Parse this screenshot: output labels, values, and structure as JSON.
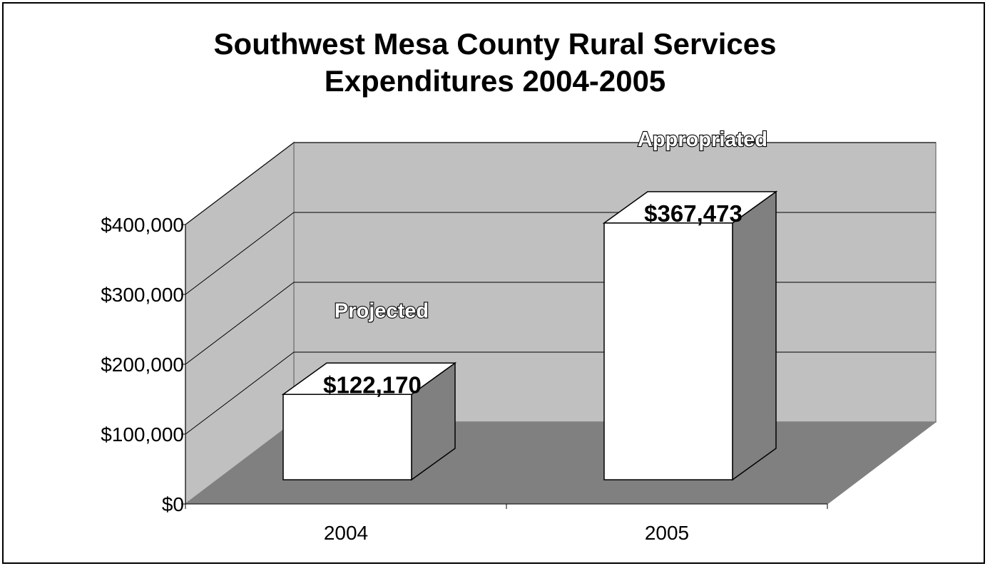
{
  "chart_data": {
    "type": "bar",
    "title": "Southwest Mesa County Rural Services",
    "subtitle": "Expenditures 2004-2005",
    "categories": [
      "2004",
      "2005"
    ],
    "values": [
      122170,
      367473
    ],
    "value_labels": [
      "$122,170",
      "$367,473"
    ],
    "annotations": [
      "Projected",
      "Appropriated"
    ],
    "ylim": [
      0,
      400000
    ],
    "yticks": [
      "$0",
      "$100,000",
      "$200,000",
      "$300,000",
      "$400,000"
    ],
    "ytick_values": [
      0,
      100000,
      200000,
      300000,
      400000
    ],
    "grid": true,
    "legend": "none",
    "style": "3d-column",
    "colors": {
      "bar_front": "#ffffff",
      "bar_side": "#808080",
      "wall": "#c0c0c0",
      "floor": "#808080",
      "gridline": "#000000"
    }
  }
}
